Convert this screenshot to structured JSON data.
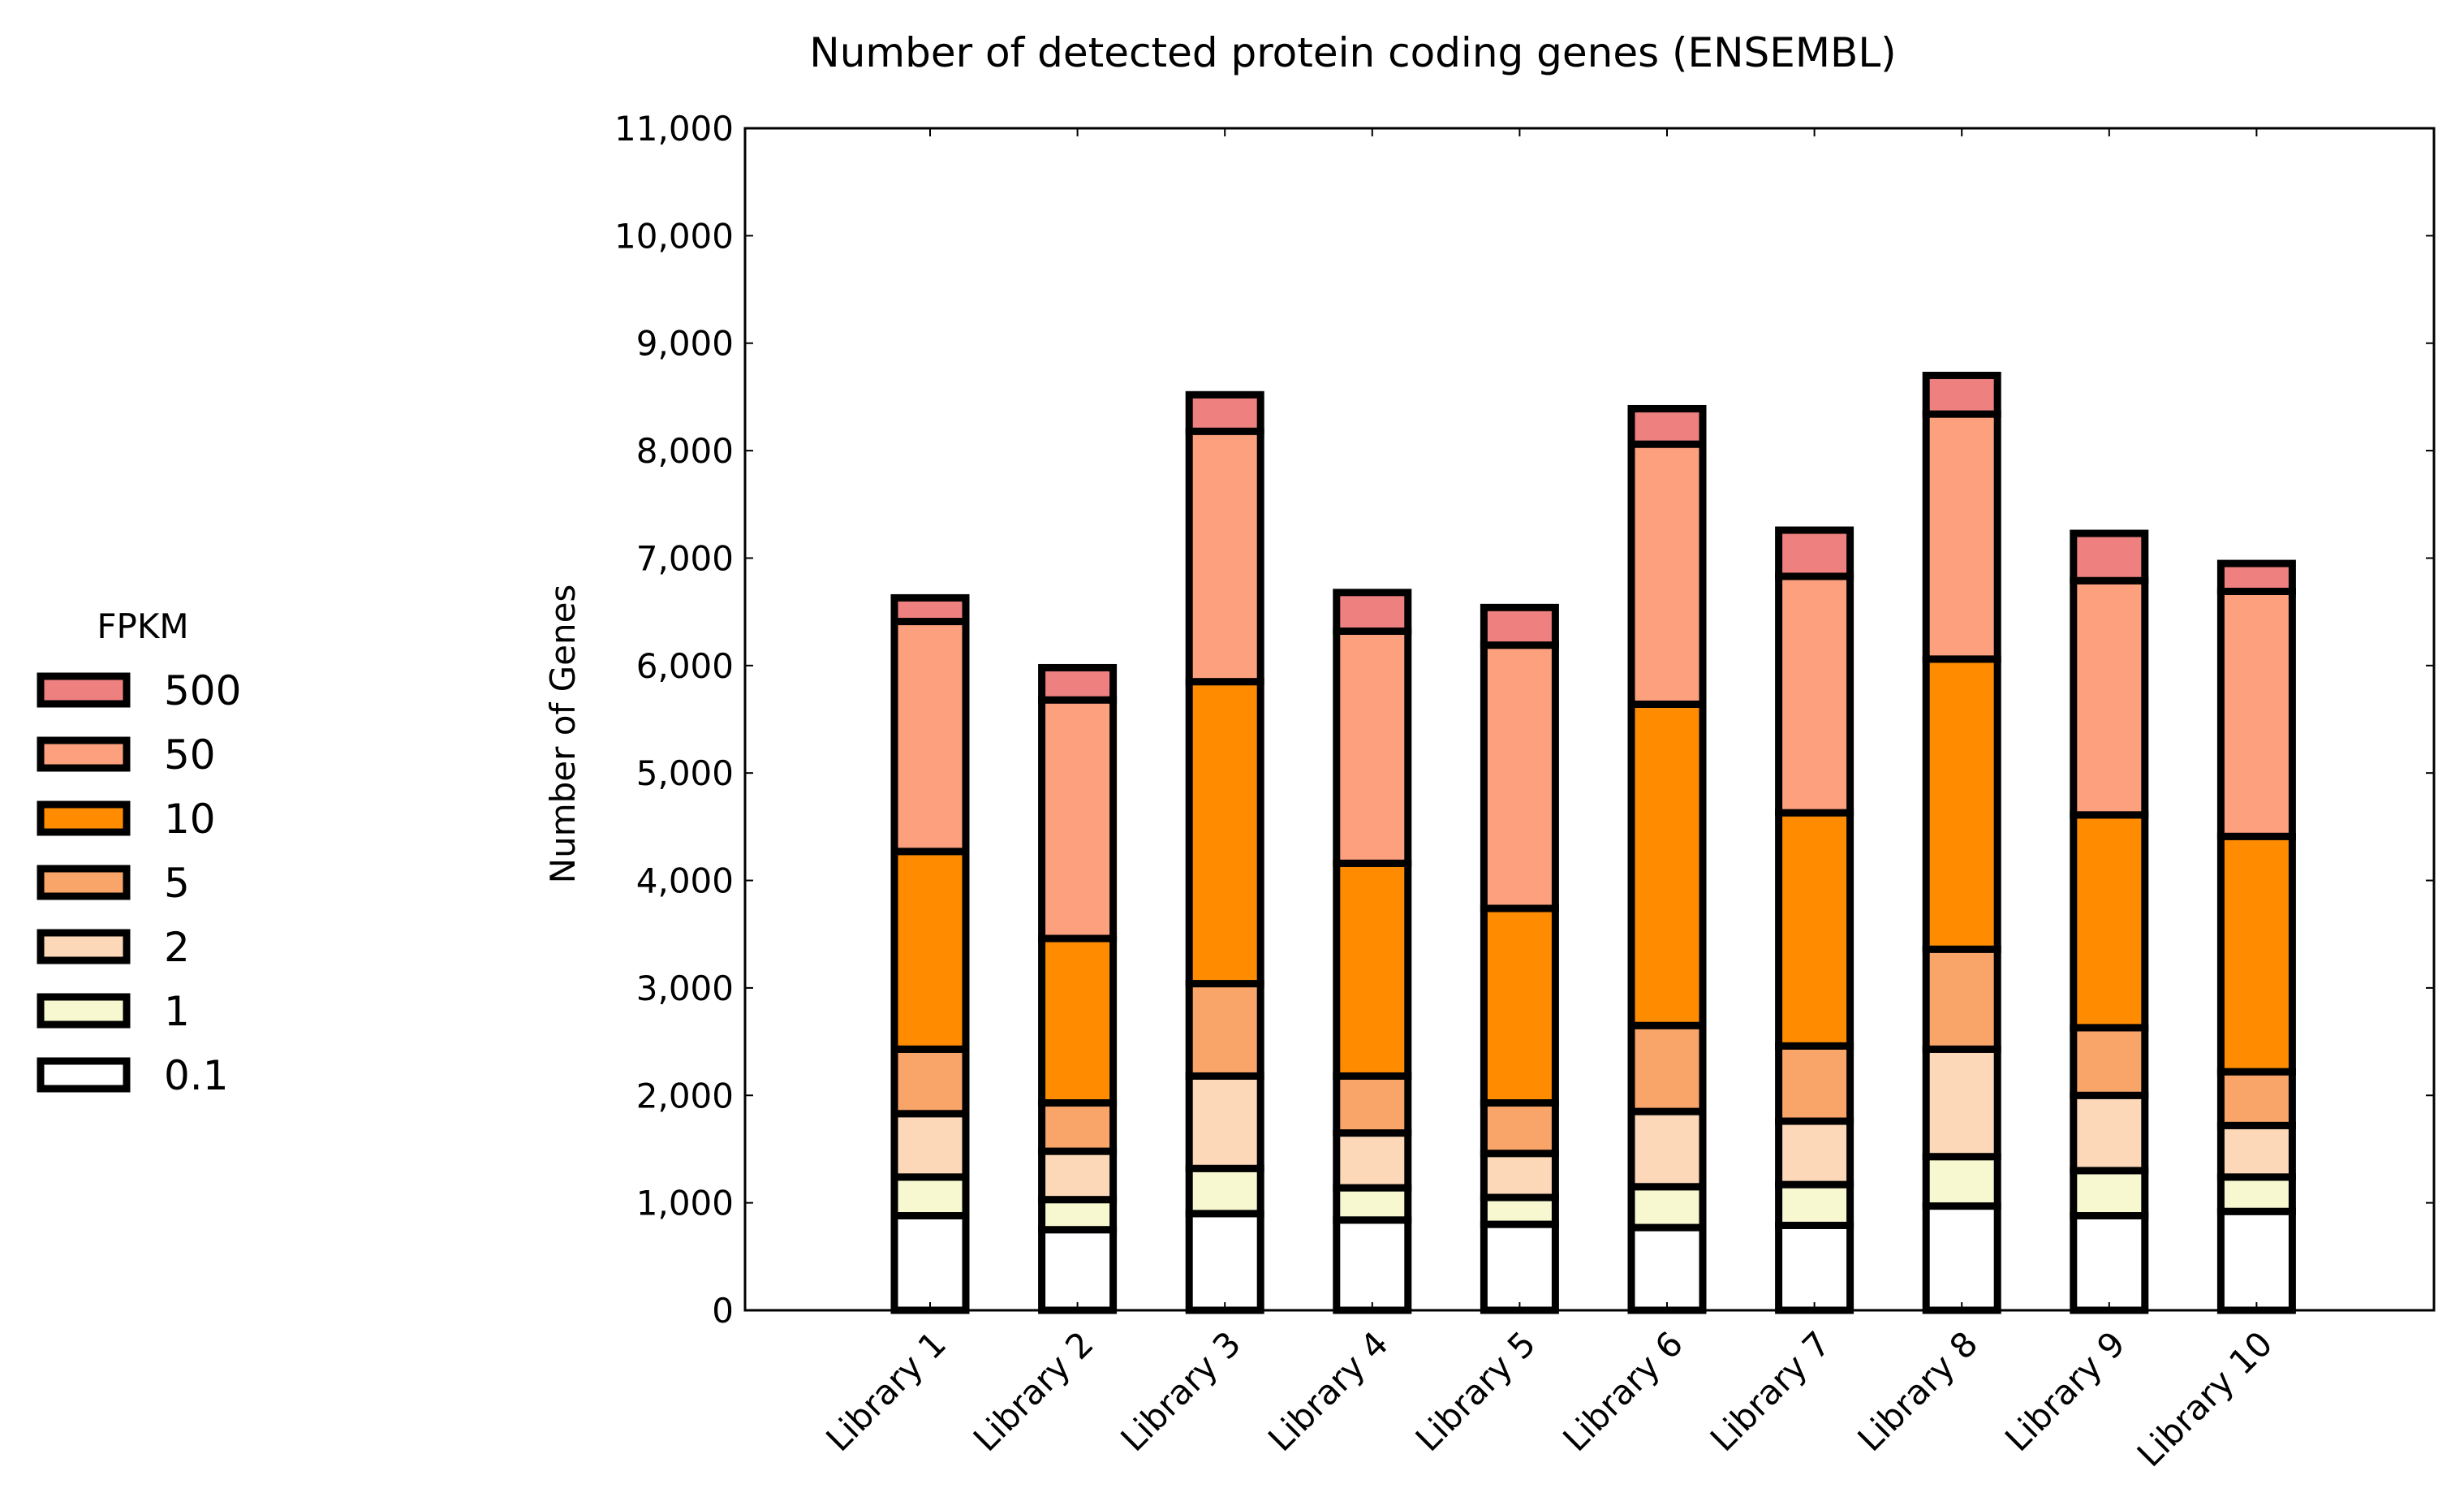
{
  "chart_data": {
    "type": "bar",
    "stacked": true,
    "title": "Number of detected protein coding genes (ENSEMBL)",
    "xlabel": "",
    "ylabel": "Number of Genes",
    "ylim": [
      0,
      11000
    ],
    "yticks": [
      0,
      1000,
      2000,
      3000,
      4000,
      5000,
      6000,
      7000,
      8000,
      9000,
      10000,
      11000
    ],
    "ytick_labels": [
      "0",
      "1,000",
      "2,000",
      "3,000",
      "4,000",
      "5,000",
      "6,000",
      "7,000",
      "8,000",
      "9,000",
      "10,000",
      "11,000"
    ],
    "grid": false,
    "legend": {
      "title": "FPKM",
      "placement": "left",
      "order": [
        "500",
        "50",
        "10",
        "5",
        "2",
        "1",
        "0.1"
      ]
    },
    "categories": [
      "Library 1",
      "Library 2",
      "Library 3",
      "Library 4",
      "Library 5",
      "Library 6",
      "Library 7",
      "Library 8",
      "Library 9",
      "Library 10"
    ],
    "series": [
      {
        "name": "0.1",
        "color": "#ffffff",
        "values": [
          880,
          750,
          900,
          840,
          800,
          770,
          790,
          970,
          880,
          920
        ]
      },
      {
        "name": "1",
        "color": "#f8f8d0",
        "values": [
          360,
          280,
          420,
          300,
          250,
          380,
          380,
          460,
          420,
          320
        ]
      },
      {
        "name": "2",
        "color": "#fdd8b8",
        "values": [
          590,
          450,
          860,
          510,
          410,
          700,
          590,
          1000,
          700,
          480
        ]
      },
      {
        "name": "5",
        "color": "#f9a468",
        "values": [
          600,
          450,
          860,
          530,
          470,
          800,
          700,
          930,
          630,
          500
        ]
      },
      {
        "name": "10",
        "color": "#ff8c00",
        "values": [
          1840,
          1530,
          2810,
          1980,
          1810,
          2990,
          2170,
          2700,
          1980,
          2190
        ]
      },
      {
        "name": "50",
        "color": "#fda07e",
        "values": [
          2140,
          2220,
          2330,
          2160,
          2450,
          2420,
          2200,
          2280,
          2180,
          2280
        ]
      },
      {
        "name": "500",
        "color": "#ee8080",
        "values": [
          220,
          300,
          340,
          360,
          350,
          330,
          430,
          360,
          440,
          260
        ]
      }
    ]
  }
}
